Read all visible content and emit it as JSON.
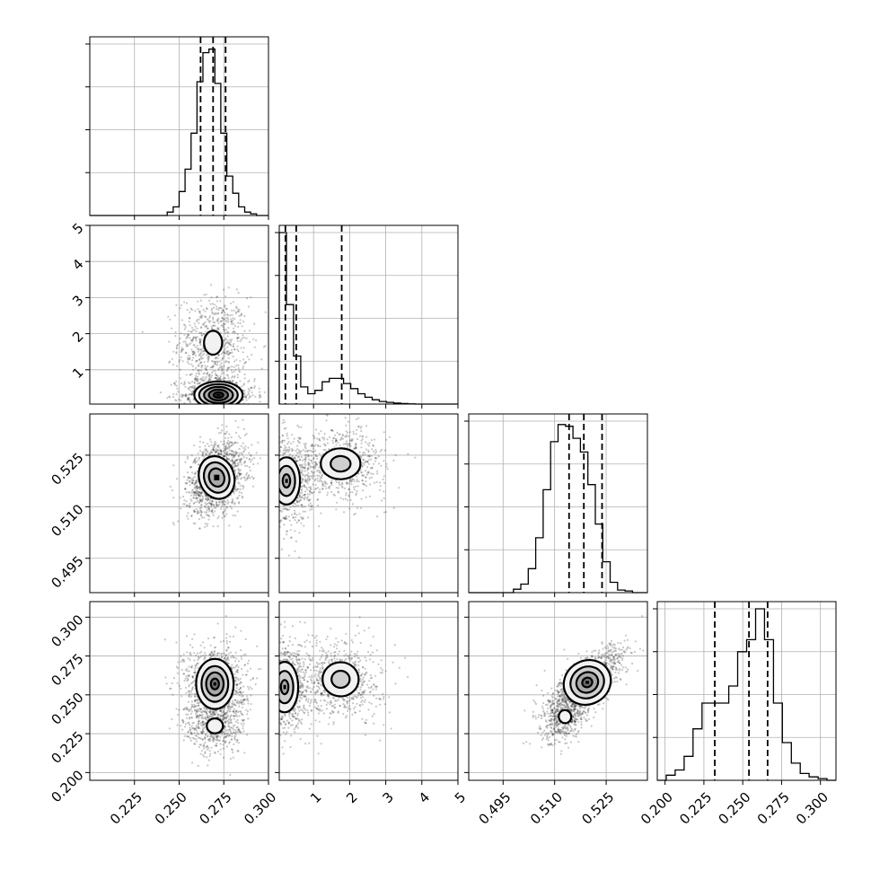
{
  "chart_data": {
    "type": "corner",
    "title": "",
    "parameters": [
      {
        "range": [
          0.2,
          0.3
        ],
        "ticks": [
          "0.225",
          "0.250",
          "0.275",
          "0.300"
        ],
        "tick_values": [
          0.225,
          0.25,
          0.275,
          0.3
        ],
        "histogram": [
          0,
          0,
          0,
          0,
          0,
          0,
          0,
          0,
          0,
          0,
          0,
          0,
          0,
          0.02,
          0.05,
          0.14,
          0.27,
          0.48,
          0.78,
          0.95,
          0.97,
          0.77,
          0.48,
          0.23,
          0.13,
          0.05,
          0.02,
          0.01,
          0,
          0
        ],
        "quantiles": [
          0.262,
          0.269,
          0.276
        ]
      },
      {
        "range": [
          0.05,
          5
        ],
        "ticks": [
          "1",
          "2",
          "3",
          "4",
          "5"
        ],
        "tick_values": [
          1,
          2,
          3,
          4,
          5
        ],
        "histogram": [
          1.0,
          0.58,
          0.28,
          0.1,
          0.06,
          0.08,
          0.13,
          0.15,
          0.15,
          0.12,
          0.09,
          0.06,
          0.04,
          0.025,
          0.015,
          0.01,
          0.006,
          0.003,
          0.001,
          0,
          0,
          0,
          0,
          0,
          0
        ],
        "quantiles": [
          0.22,
          0.52,
          1.78
        ]
      },
      {
        "range": [
          0.485,
          0.537
        ],
        "ticks": [
          "0.495",
          "0.510",
          "0.525"
        ],
        "tick_values": [
          0.495,
          0.51,
          0.525
        ],
        "histogram": [
          0,
          0,
          0,
          0,
          0,
          0,
          0.02,
          0.05,
          0.14,
          0.32,
          0.6,
          0.88,
          0.98,
          0.97,
          0.9,
          0.82,
          0.63,
          0.4,
          0.18,
          0.06,
          0.015,
          0.01,
          0,
          0
        ],
        "quantiles": [
          0.5142,
          0.5185,
          0.5238
        ]
      },
      {
        "range": [
          0.195,
          0.31
        ],
        "ticks": [
          "0.200",
          "0.225",
          "0.250",
          "0.275",
          "0.300"
        ],
        "tick_values": [
          0.2,
          0.225,
          0.25,
          0.275,
          0.3
        ],
        "histogram": [
          0,
          0.03,
          0.06,
          0.14,
          0.3,
          0.45,
          0.45,
          0.45,
          0.55,
          0.75,
          0.82,
          1.0,
          0.82,
          0.45,
          0.22,
          0.1,
          0.04,
          0.02,
          0.01,
          0
        ],
        "quantiles": [
          0.232,
          0.254,
          0.266
        ]
      }
    ],
    "pair_plots": [
      {
        "i": 1,
        "j": 0,
        "modes": [
          {
            "center": [
              0.269,
              1.75
            ],
            "sd": [
              0.0085,
              0.55
            ],
            "rho": 0,
            "weight": 0.45,
            "contours": [
              0.6
            ]
          },
          {
            "center": [
              0.272,
              0.3
            ],
            "sd": [
              0.009,
              0.25
            ],
            "rho": 0,
            "weight": 0.55,
            "contours": [
              0.3,
              0.6,
              0.9,
              1.2,
              1.5
            ]
          }
        ]
      },
      {
        "i": 2,
        "j": 0,
        "modes": [
          {
            "center": [
              0.271,
              0.5185
            ],
            "sd": [
              0.007,
              0.0045
            ],
            "rho": 0.3,
            "weight": 1.0,
            "contours": [
              0.6,
              1.0,
              1.4
            ]
          }
        ]
      },
      {
        "i": 2,
        "j": 1,
        "modes": [
          {
            "center": [
              0.25,
              0.5175
            ],
            "sd": [
              0.3,
              0.0055
            ],
            "rho": 0,
            "weight": 0.55,
            "contours": [
              0.35,
              0.8,
              1.25
            ]
          },
          {
            "center": [
              1.75,
              0.5225
            ],
            "sd": [
              0.55,
              0.0045
            ],
            "rho": 0,
            "weight": 0.45,
            "contours": [
              0.5,
              1.0
            ]
          }
        ]
      },
      {
        "i": 3,
        "j": 0,
        "modes": [
          {
            "center": [
              0.27,
              0.257
            ],
            "sd": [
              0.0075,
              0.0115
            ],
            "rho": 0,
            "weight": 0.65,
            "contours": [
              0.3,
              0.65,
              1.0,
              1.4
            ]
          },
          {
            "center": [
              0.27,
              0.23
            ],
            "sd": [
              0.0075,
              0.008
            ],
            "rho": 0,
            "weight": 0.35,
            "contours": [
              0.6
            ]
          }
        ]
      },
      {
        "i": 3,
        "j": 1,
        "modes": [
          {
            "center": [
              0.2,
              0.255
            ],
            "sd": [
              0.3,
              0.013
            ],
            "rho": 0,
            "weight": 0.55,
            "contours": [
              0.35,
              0.8,
              1.25
            ]
          },
          {
            "center": [
              1.75,
              0.26
            ],
            "sd": [
              0.5,
              0.011
            ],
            "rho": 0,
            "weight": 0.45,
            "contours": [
              0.5,
              1.0
            ]
          }
        ]
      },
      {
        "i": 3,
        "j": 2,
        "modes": [
          {
            "center": [
              0.5195,
              0.258
            ],
            "sd": [
              0.005,
              0.01
            ],
            "rho": 0.72,
            "weight": 0.7,
            "contours": [
              0.3,
              0.65,
              1.0,
              1.4
            ]
          },
          {
            "center": [
              0.513,
              0.236
            ],
            "sd": [
              0.003,
              0.007
            ],
            "rho": 0.3,
            "weight": 0.3,
            "contours": [
              0.6
            ]
          }
        ]
      }
    ],
    "xlabels": [
      "",
      "",
      "",
      ""
    ],
    "ylabels": [
      "",
      "",
      "",
      ""
    ],
    "grid": true,
    "legend": "none"
  }
}
